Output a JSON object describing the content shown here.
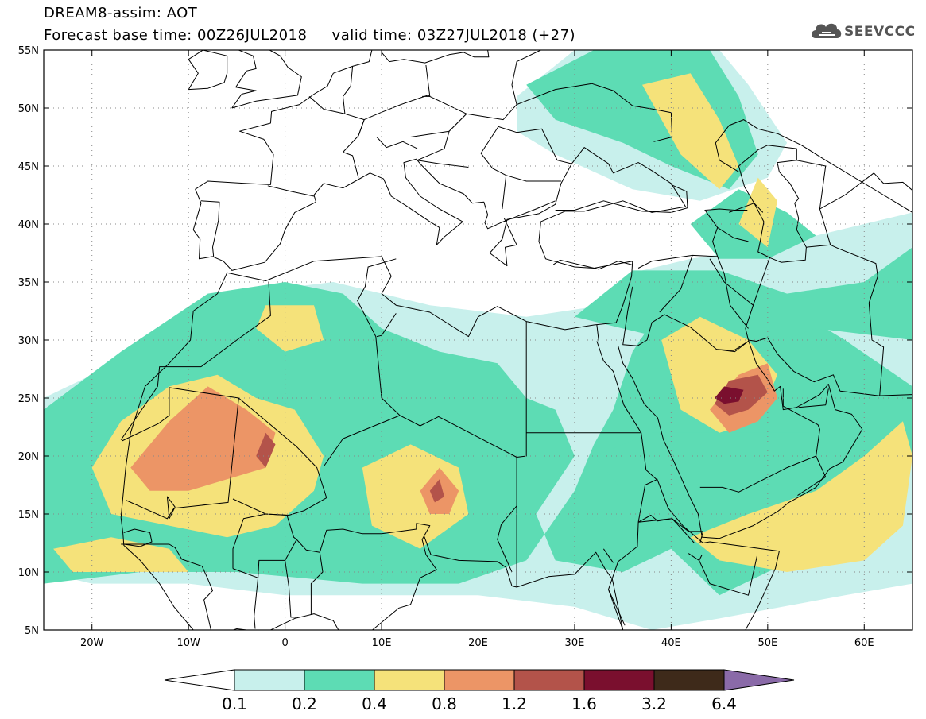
{
  "header": {
    "title_line1": "DREAM8-assim: AOT",
    "title_line2": "Forecast base time: 00Z26JUL2018     valid time: 03Z27JUL2018 (+27)",
    "logo_text": "SEEVCCC",
    "logo_icon": "cloud-icon"
  },
  "map": {
    "lon_range": [
      -25,
      65
    ],
    "lat_range": [
      5,
      55
    ],
    "lat_ticks": [
      {
        "value": 55,
        "label": "55N"
      },
      {
        "value": 50,
        "label": "50N"
      },
      {
        "value": 45,
        "label": "45N"
      },
      {
        "value": 40,
        "label": "40N"
      },
      {
        "value": 35,
        "label": "35N"
      },
      {
        "value": 30,
        "label": "30N"
      },
      {
        "value": 25,
        "label": "25N"
      },
      {
        "value": 20,
        "label": "20N"
      },
      {
        "value": 15,
        "label": "15N"
      },
      {
        "value": 10,
        "label": "10N"
      },
      {
        "value": 5,
        "label": "5N"
      }
    ],
    "lon_ticks": [
      {
        "value": -20,
        "label": "20W"
      },
      {
        "value": -10,
        "label": "10W"
      },
      {
        "value": 0,
        "label": "0"
      },
      {
        "value": 10,
        "label": "10E"
      },
      {
        "value": 20,
        "label": "20E"
      },
      {
        "value": 30,
        "label": "30E"
      },
      {
        "value": 40,
        "label": "40E"
      },
      {
        "value": 50,
        "label": "50E"
      },
      {
        "value": 60,
        "label": "60E"
      }
    ],
    "grid": true
  },
  "colorbar": {
    "levels": [
      "0.1",
      "0.2",
      "0.4",
      "0.8",
      "1.2",
      "1.6",
      "3.2",
      "6.4"
    ],
    "colors": [
      "#ffffff",
      "#c8f0ec",
      "#5ddcb4",
      "#f5e27a",
      "#ec9566",
      "#b3534a",
      "#7a0f2e",
      "#3e2a1a",
      "#8a6aa8"
    ]
  },
  "field": {
    "contours": [
      {
        "level": 1,
        "color": "#c8f0ec",
        "polys": [
          [
            [
              -25,
              25
            ],
            [
              -15,
              29
            ],
            [
              -5,
              34
            ],
            [
              5,
              35
            ],
            [
              15,
              33
            ],
            [
              25,
              32
            ],
            [
              33,
              33
            ],
            [
              37,
              36
            ],
            [
              42,
              37
            ],
            [
              50,
              38
            ],
            [
              60,
              40
            ],
            [
              65,
              41
            ],
            [
              65,
              9
            ],
            [
              58,
              8
            ],
            [
              45,
              6
            ],
            [
              38,
              5
            ],
            [
              30,
              7
            ],
            [
              20,
              8
            ],
            [
              10,
              8
            ],
            [
              0,
              8
            ],
            [
              -10,
              9
            ],
            [
              -20,
              9
            ],
            [
              -25,
              10
            ]
          ],
          [
            [
              24,
              51
            ],
            [
              30,
              55
            ],
            [
              45,
              55
            ],
            [
              48,
              52
            ],
            [
              52,
              47
            ],
            [
              50,
              44
            ],
            [
              43,
              42
            ],
            [
              36,
              43
            ],
            [
              28,
              46
            ],
            [
              24,
              48
            ]
          ]
        ]
      },
      {
        "level": 2,
        "color": "#5ddcb4",
        "polys": [
          [
            [
              -25,
              24
            ],
            [
              -17,
              29
            ],
            [
              -8,
              34
            ],
            [
              0,
              35
            ],
            [
              6,
              34
            ],
            [
              10,
              31
            ],
            [
              16,
              29
            ],
            [
              22,
              28
            ],
            [
              25,
              25
            ],
            [
              28,
              24
            ],
            [
              30,
              20
            ],
            [
              26,
              15
            ],
            [
              28,
              11
            ],
            [
              35,
              10
            ],
            [
              40,
              12
            ],
            [
              45,
              8
            ],
            [
              55,
              12
            ],
            [
              60,
              17
            ],
            [
              65,
              20
            ],
            [
              65,
              26
            ],
            [
              58,
              30
            ],
            [
              52,
              33
            ],
            [
              46,
              35
            ],
            [
              40,
              34
            ],
            [
              36,
              29
            ],
            [
              34,
              24
            ],
            [
              32,
              21
            ],
            [
              30,
              17
            ],
            [
              25,
              11
            ],
            [
              18,
              9
            ],
            [
              8,
              9
            ],
            [
              -5,
              10
            ],
            [
              -15,
              10
            ],
            [
              -25,
              9
            ]
          ],
          [
            [
              30,
              32
            ],
            [
              36,
              36
            ],
            [
              45,
              36
            ],
            [
              52,
              34
            ],
            [
              60,
              35
            ],
            [
              65,
              38
            ],
            [
              65,
              30
            ],
            [
              55,
              31
            ],
            [
              48,
              29
            ],
            [
              40,
              30
            ]
          ],
          [
            [
              25,
              52
            ],
            [
              32,
              55
            ],
            [
              44,
              55
            ],
            [
              47,
              51
            ],
            [
              49,
              46
            ],
            [
              46,
              43
            ],
            [
              40,
              45
            ],
            [
              35,
              47
            ],
            [
              28,
              49
            ]
          ],
          [
            [
              42,
              40
            ],
            [
              47,
              43
            ],
            [
              52,
              41
            ],
            [
              55,
              39
            ],
            [
              50,
              37
            ],
            [
              45,
              37
            ]
          ],
          [
            [
              32,
              20
            ],
            [
              36,
              16
            ],
            [
              42,
              12
            ],
            [
              48,
              12
            ],
            [
              55,
              14
            ],
            [
              60,
              16
            ],
            [
              62,
              20
            ],
            [
              55,
              22
            ],
            [
              46,
              22
            ],
            [
              38,
              22
            ]
          ]
        ]
      },
      {
        "level": 3,
        "color": "#f5e27a",
        "polys": [
          [
            [
              -20,
              19
            ],
            [
              -17,
              23
            ],
            [
              -12,
              26
            ],
            [
              -7,
              27
            ],
            [
              -3,
              25
            ],
            [
              1,
              24
            ],
            [
              4,
              20
            ],
            [
              3,
              17
            ],
            [
              -1,
              14
            ],
            [
              -6,
              13
            ],
            [
              -12,
              14
            ],
            [
              -18,
              15
            ]
          ],
          [
            [
              -24,
              12
            ],
            [
              -18,
              13
            ],
            [
              -12,
              12
            ],
            [
              -10,
              10
            ],
            [
              -16,
              10
            ],
            [
              -22,
              10
            ]
          ],
          [
            [
              -2,
              33
            ],
            [
              3,
              33
            ],
            [
              4,
              30
            ],
            [
              0,
              29
            ],
            [
              -3,
              31
            ]
          ],
          [
            [
              8,
              19
            ],
            [
              13,
              21
            ],
            [
              18,
              19
            ],
            [
              19,
              15
            ],
            [
              14,
              12
            ],
            [
              9,
              14
            ]
          ],
          [
            [
              39,
              30
            ],
            [
              43,
              32
            ],
            [
              48,
              30
            ],
            [
              51,
              27
            ],
            [
              49,
              23
            ],
            [
              45,
              22
            ],
            [
              41,
              24
            ]
          ],
          [
            [
              42,
              13
            ],
            [
              48,
              15
            ],
            [
              55,
              17
            ],
            [
              60,
              20
            ],
            [
              64,
              23
            ],
            [
              65,
              20
            ],
            [
              64,
              14
            ],
            [
              60,
              11
            ],
            [
              52,
              10
            ],
            [
              45,
              11
            ]
          ],
          [
            [
              37,
              52
            ],
            [
              42,
              53
            ],
            [
              45,
              49
            ],
            [
              47,
              45
            ],
            [
              45,
              43
            ],
            [
              41,
              46
            ]
          ],
          [
            [
              47,
              40
            ],
            [
              49,
              44
            ],
            [
              51,
              42
            ],
            [
              50,
              38
            ]
          ]
        ]
      },
      {
        "level": 4,
        "color": "#ec9566",
        "polys": [
          [
            [
              -16,
              19
            ],
            [
              -12,
              23
            ],
            [
              -8,
              26
            ],
            [
              -4,
              24
            ],
            [
              -1,
              22
            ],
            [
              -2,
              19
            ],
            [
              -6,
              18
            ],
            [
              -10,
              17
            ],
            [
              -14,
              17
            ]
          ],
          [
            [
              14,
              17
            ],
            [
              16,
              19
            ],
            [
              18,
              17
            ],
            [
              17,
              15
            ],
            [
              15,
              15
            ]
          ],
          [
            [
              44,
              24
            ],
            [
              47,
              27
            ],
            [
              50,
              28
            ],
            [
              51,
              25
            ],
            [
              49,
              23
            ],
            [
              46,
              22
            ]
          ]
        ]
      },
      {
        "level": 5,
        "color": "#b3534a",
        "polys": [
          [
            [
              -3,
              20
            ],
            [
              -2,
              22
            ],
            [
              -1,
              21
            ],
            [
              -2,
              19
            ]
          ],
          [
            [
              15,
              17
            ],
            [
              16,
              18
            ],
            [
              16.5,
              16.5
            ],
            [
              15.5,
              16
            ]
          ],
          [
            [
              44.5,
              24.5
            ],
            [
              46,
              26.5
            ],
            [
              49,
              27
            ],
            [
              50,
              25.5
            ],
            [
              48,
              24
            ],
            [
              46,
              23.5
            ]
          ]
        ]
      },
      {
        "level": 6,
        "color": "#7a0f2e",
        "polys": [
          [
            [
              44.5,
              25
            ],
            [
              45.5,
              26
            ],
            [
              47.5,
              25.7
            ],
            [
              47,
              24.7
            ],
            [
              45.5,
              24.5
            ]
          ]
        ]
      }
    ]
  }
}
